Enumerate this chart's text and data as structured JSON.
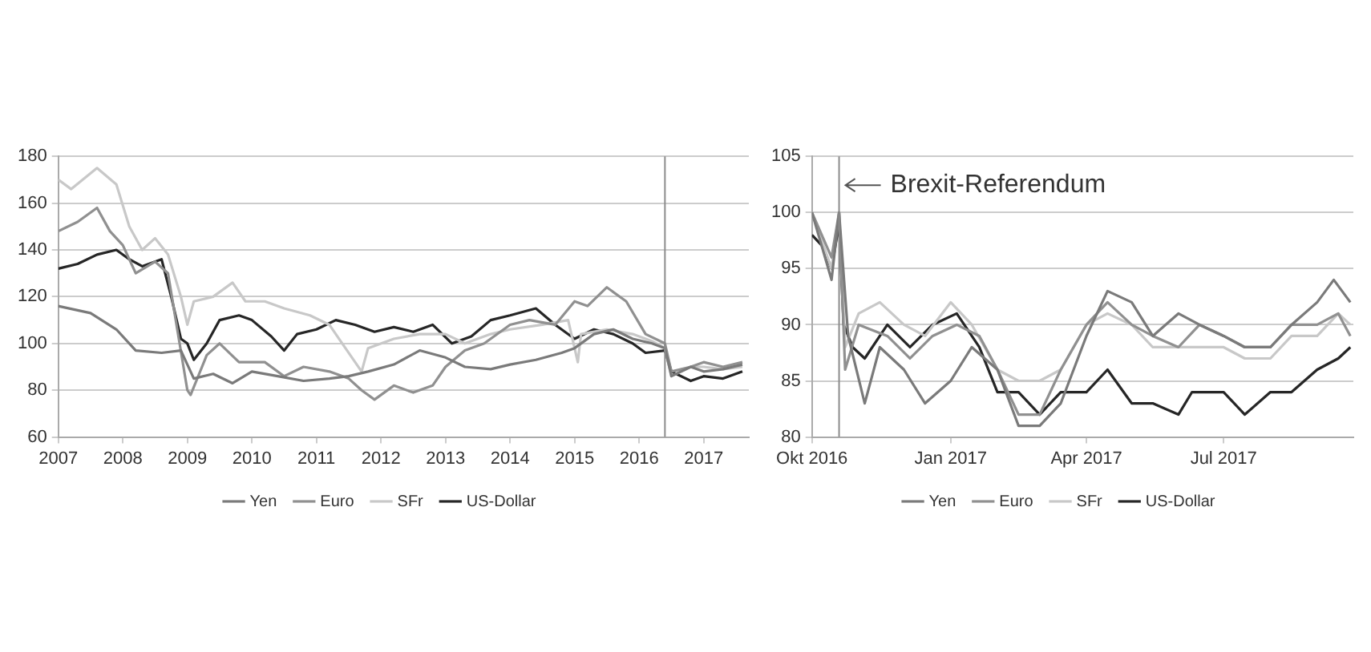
{
  "chart_data": [
    {
      "type": "line",
      "grid": "y",
      "legend": "bottom",
      "marker": "none",
      "line_style": "solid",
      "xlim": [
        2007,
        2017.7
      ],
      "xticks": [
        2007,
        2008,
        2009,
        2010,
        2011,
        2012,
        2013,
        2014,
        2015,
        2016,
        2017
      ],
      "ylim": [
        60,
        180
      ],
      "yticks": [
        60,
        80,
        100,
        120,
        140,
        160,
        180
      ],
      "ref_lines": [
        {
          "axis": "x",
          "value": 2016.4,
          "color": "#8c8c8c"
        }
      ],
      "series": [
        {
          "name": "Yen",
          "color": "#7a7a7a",
          "x": [
            2007,
            2007.5,
            2007.9,
            2008.2,
            2008.6,
            2008.9,
            2009.1,
            2009.4,
            2009.7,
            2010,
            2010.4,
            2010.8,
            2011.2,
            2011.5,
            2011.8,
            2012.2,
            2012.6,
            2013,
            2013.3,
            2013.7,
            2014,
            2014.4,
            2014.8,
            2015,
            2015.3,
            2015.6,
            2015.9,
            2016.2,
            2016.4,
            2016.5,
            2016.8,
            2017,
            2017.3,
            2017.6
          ],
          "values": [
            116,
            113,
            106,
            97,
            96,
            97,
            85,
            87,
            83,
            88,
            86,
            84,
            85,
            86,
            88,
            91,
            97,
            94,
            90,
            89,
            91,
            93,
            96,
            98,
            104,
            106,
            102,
            100,
            98,
            86,
            90,
            88,
            89,
            91
          ]
        },
        {
          "name": "Euro",
          "color": "#909090",
          "x": [
            2007,
            2007.3,
            2007.6,
            2007.8,
            2008,
            2008.2,
            2008.5,
            2008.7,
            2008.85,
            2009,
            2009.05,
            2009.3,
            2009.5,
            2009.8,
            2010.2,
            2010.5,
            2010.8,
            2011.2,
            2011.5,
            2011.7,
            2011.9,
            2012.2,
            2012.5,
            2012.8,
            2013,
            2013.3,
            2013.6,
            2014,
            2014.3,
            2014.7,
            2015,
            2015.2,
            2015.5,
            2015.8,
            2016.1,
            2016.4,
            2016.5,
            2016.8,
            2017,
            2017.3,
            2017.6
          ],
          "values": [
            148,
            152,
            158,
            148,
            142,
            130,
            135,
            130,
            105,
            80,
            78,
            95,
            100,
            92,
            92,
            86,
            90,
            88,
            85,
            80,
            76,
            82,
            79,
            82,
            90,
            97,
            100,
            108,
            110,
            108,
            118,
            116,
            124,
            118,
            104,
            100,
            88,
            90,
            92,
            90,
            92
          ]
        },
        {
          "name": "SFr",
          "color": "#c8c8c8",
          "x": [
            2007,
            2007.2,
            2007.6,
            2007.9,
            2008.1,
            2008.3,
            2008.5,
            2008.7,
            2008.9,
            2009,
            2009.1,
            2009.4,
            2009.7,
            2009.9,
            2010.2,
            2010.5,
            2010.9,
            2011.2,
            2011.4,
            2011.7,
            2011.8,
            2012.2,
            2012.6,
            2013,
            2013.3,
            2013.7,
            2014,
            2014.5,
            2014.9,
            2015.05,
            2015.1,
            2015.5,
            2015.9,
            2016.2,
            2016.4,
            2016.5,
            2016.8,
            2017,
            2017.3,
            2017.6
          ],
          "values": [
            170,
            166,
            175,
            168,
            150,
            140,
            145,
            138,
            120,
            108,
            118,
            120,
            126,
            118,
            118,
            115,
            112,
            108,
            100,
            88,
            98,
            102,
            104,
            104,
            100,
            104,
            106,
            108,
            110,
            92,
            104,
            106,
            104,
            101,
            98,
            86,
            90,
            90,
            89,
            90
          ]
        },
        {
          "name": "US-Dollar",
          "color": "#262626",
          "x": [
            2007,
            2007.3,
            2007.6,
            2007.9,
            2008.1,
            2008.3,
            2008.6,
            2008.75,
            2008.9,
            2009,
            2009.1,
            2009.3,
            2009.5,
            2009.8,
            2010,
            2010.3,
            2010.5,
            2010.7,
            2011,
            2011.3,
            2011.6,
            2011.9,
            2012.2,
            2012.5,
            2012.8,
            2013.1,
            2013.4,
            2013.7,
            2014,
            2014.4,
            2014.7,
            2015,
            2015.3,
            2015.6,
            2015.9,
            2016.1,
            2016.4,
            2016.5,
            2016.8,
            2017,
            2017.3,
            2017.6
          ],
          "values": [
            132,
            134,
            138,
            140,
            136,
            133,
            136,
            120,
            102,
            100,
            93,
            100,
            110,
            112,
            110,
            103,
            97,
            104,
            106,
            110,
            108,
            105,
            107,
            105,
            108,
            100,
            103,
            110,
            112,
            115,
            108,
            102,
            106,
            104,
            100,
            96,
            97,
            88,
            84,
            86,
            85,
            88
          ]
        }
      ]
    },
    {
      "type": "line",
      "grid": "y",
      "legend": "bottom",
      "marker": "none",
      "line_style": "solid",
      "xlim": [
        "2016-10-01",
        "2017-09-25"
      ],
      "xticks": [
        {
          "value": "2016-10-01",
          "label": "Okt 2016"
        },
        {
          "value": "2017-01-01",
          "label": "Jan 2017"
        },
        {
          "value": "2017-04-01",
          "label": "Apr 2017"
        },
        {
          "value": "2017-07-01",
          "label": "Jul 2017"
        }
      ],
      "ylim": [
        80,
        105
      ],
      "yticks": [
        80,
        85,
        90,
        95,
        100,
        105
      ],
      "ref_lines": [
        {
          "axis": "x",
          "value": "2016-10-19",
          "label": "Brexit-Referendum",
          "color": "#8c8c8c"
        }
      ],
      "series": [
        {
          "name": "Yen",
          "color": "#7a7a7a",
          "x": [
            "2016-10-01",
            "2016-10-14",
            "2016-10-19",
            "2016-10-25",
            "2016-11-05",
            "2016-11-15",
            "2016-12-01",
            "2016-12-15",
            "2017-01-01",
            "2017-01-15",
            "2017-02-01",
            "2017-02-15",
            "2017-03-01",
            "2017-03-15",
            "2017-04-01",
            "2017-04-15",
            "2017-05-01",
            "2017-05-15",
            "2017-06-01",
            "2017-06-15",
            "2017-07-01",
            "2017-07-15",
            "2017-08-01",
            "2017-08-15",
            "2017-09-01",
            "2017-09-12",
            "2017-09-23"
          ],
          "values": [
            100,
            94,
            100,
            89,
            83,
            88,
            86,
            83,
            85,
            88,
            86,
            81,
            81,
            83,
            89,
            93,
            92,
            89,
            91,
            90,
            89,
            88,
            88,
            90,
            92,
            94,
            92
          ]
        },
        {
          "name": "Euro",
          "color": "#909090",
          "x": [
            "2016-10-01",
            "2016-10-14",
            "2016-10-19",
            "2016-10-23",
            "2016-11-01",
            "2016-11-20",
            "2016-12-05",
            "2016-12-20",
            "2017-01-05",
            "2017-01-20",
            "2017-02-01",
            "2017-02-15",
            "2017-03-01",
            "2017-03-15",
            "2017-04-01",
            "2017-04-15",
            "2017-05-01",
            "2017-05-15",
            "2017-06-01",
            "2017-06-15",
            "2017-07-01",
            "2017-07-15",
            "2017-08-01",
            "2017-08-15",
            "2017-09-01",
            "2017-09-15",
            "2017-09-23"
          ],
          "values": [
            100,
            96,
            100,
            86,
            90,
            89,
            87,
            89,
            90,
            89,
            86,
            82,
            82,
            86,
            90,
            92,
            90,
            89,
            88,
            90,
            89,
            88,
            88,
            90,
            90,
            91,
            89
          ]
        },
        {
          "name": "SFr",
          "color": "#c8c8c8",
          "x": [
            "2016-10-01",
            "2016-10-14",
            "2016-10-19",
            "2016-10-23",
            "2016-11-01",
            "2016-11-15",
            "2016-12-01",
            "2016-12-15",
            "2017-01-01",
            "2017-01-15",
            "2017-02-01",
            "2017-02-15",
            "2017-03-01",
            "2017-03-15",
            "2017-04-01",
            "2017-04-15",
            "2017-05-01",
            "2017-05-15",
            "2017-06-01",
            "2017-06-15",
            "2017-07-01",
            "2017-07-15",
            "2017-08-01",
            "2017-08-15",
            "2017-09-01",
            "2017-09-15",
            "2017-09-23"
          ],
          "values": [
            100,
            95,
            100,
            88,
            91,
            92,
            90,
            89,
            92,
            90,
            86,
            85,
            85,
            86,
            90,
            91,
            90,
            88,
            88,
            88,
            88,
            87,
            87,
            89,
            89,
            91,
            90
          ]
        },
        {
          "name": "US-Dollar",
          "color": "#262626",
          "x": [
            "2016-10-01",
            "2016-10-08",
            "2016-10-14",
            "2016-10-19",
            "2016-10-22",
            "2016-10-28",
            "2016-11-05",
            "2016-11-20",
            "2016-12-05",
            "2016-12-20",
            "2017-01-05",
            "2017-01-20",
            "2017-02-01",
            "2017-02-15",
            "2017-03-01",
            "2017-03-15",
            "2017-04-01",
            "2017-04-15",
            "2017-05-01",
            "2017-05-15",
            "2017-06-01",
            "2017-06-10",
            "2017-07-01",
            "2017-07-15",
            "2017-08-01",
            "2017-08-15",
            "2017-09-01",
            "2017-09-15",
            "2017-09-23"
          ],
          "values": [
            98,
            97,
            95,
            99,
            90,
            88,
            87,
            90,
            88,
            90,
            91,
            88,
            84,
            84,
            82,
            84,
            84,
            86,
            83,
            83,
            82,
            84,
            84,
            82,
            84,
            84,
            86,
            87,
            88
          ]
        }
      ]
    }
  ]
}
